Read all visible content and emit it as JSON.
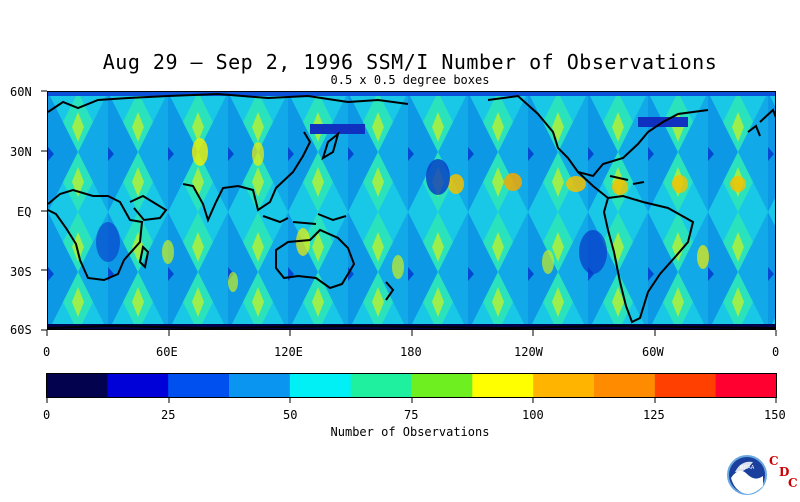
{
  "title": "Aug 29 – Sep 2, 1996 SSM/I Number of Observations",
  "subtitle": "0.5 x 0.5 degree boxes",
  "map": {
    "type": "global-observation-density",
    "projection": "equirectangular",
    "lat_range": [
      -60,
      60
    ],
    "lon_range": [
      0,
      360
    ],
    "lat_labels": [
      "60N",
      "30N",
      "EQ",
      "30S",
      "60S"
    ],
    "lon_labels": [
      "0",
      "60E",
      "120E",
      "180",
      "120W",
      "60W",
      "0"
    ],
    "coastlines": true
  },
  "colorbar": {
    "label": "Number of Observations",
    "tick_labels": [
      "0",
      "25",
      "50",
      "75",
      "100",
      "125",
      "150"
    ],
    "range": [
      0,
      150
    ],
    "bins": 12,
    "colors": [
      "#02024e",
      "#0000d8",
      "#0050f0",
      "#0a96f0",
      "#00f0f5",
      "#1ef0a0",
      "#6ef020",
      "#ffff00",
      "#ffb400",
      "#ff8c00",
      "#ff4000",
      "#ff0030"
    ]
  },
  "logo": {
    "name": "NOAA",
    "letters": [
      "C",
      "D",
      "C"
    ],
    "letter_color": "#cc0000"
  }
}
